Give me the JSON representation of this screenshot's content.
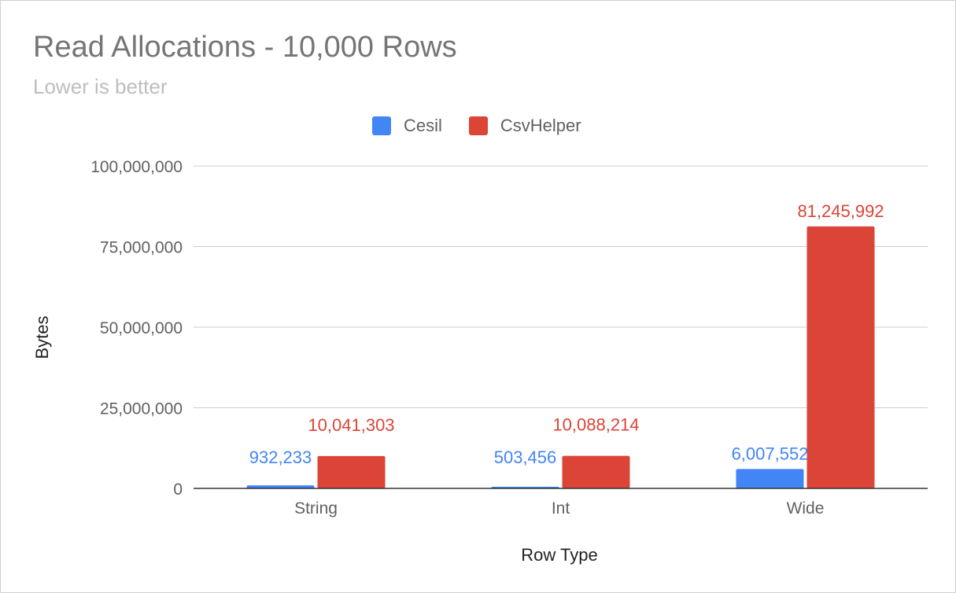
{
  "chart_data": {
    "type": "bar",
    "title": "Read Allocations - 10,000 Rows",
    "subtitle": "Lower is better",
    "xlabel": "Row Type",
    "ylabel": "Bytes",
    "categories": [
      "String",
      "Int",
      "Wide"
    ],
    "series": [
      {
        "name": "Cesil",
        "color": "#4285f4",
        "values": [
          932233,
          503456,
          6007552
        ],
        "labels": [
          "932,233",
          "503,456",
          "6,007,552"
        ]
      },
      {
        "name": "CsvHelper",
        "color": "#db4437",
        "values": [
          10041303,
          10088214,
          81245992
        ],
        "labels": [
          "10,041,303",
          "10,088,214",
          "81,245,992"
        ]
      }
    ],
    "ylim": [
      0,
      100000000
    ],
    "yticks": [
      0,
      25000000,
      50000000,
      75000000,
      100000000
    ],
    "ytick_labels": [
      "0",
      "25,000,000",
      "50,000,000",
      "75,000,000",
      "100,000,000"
    ],
    "grid": true,
    "legend_position": "top-center"
  }
}
